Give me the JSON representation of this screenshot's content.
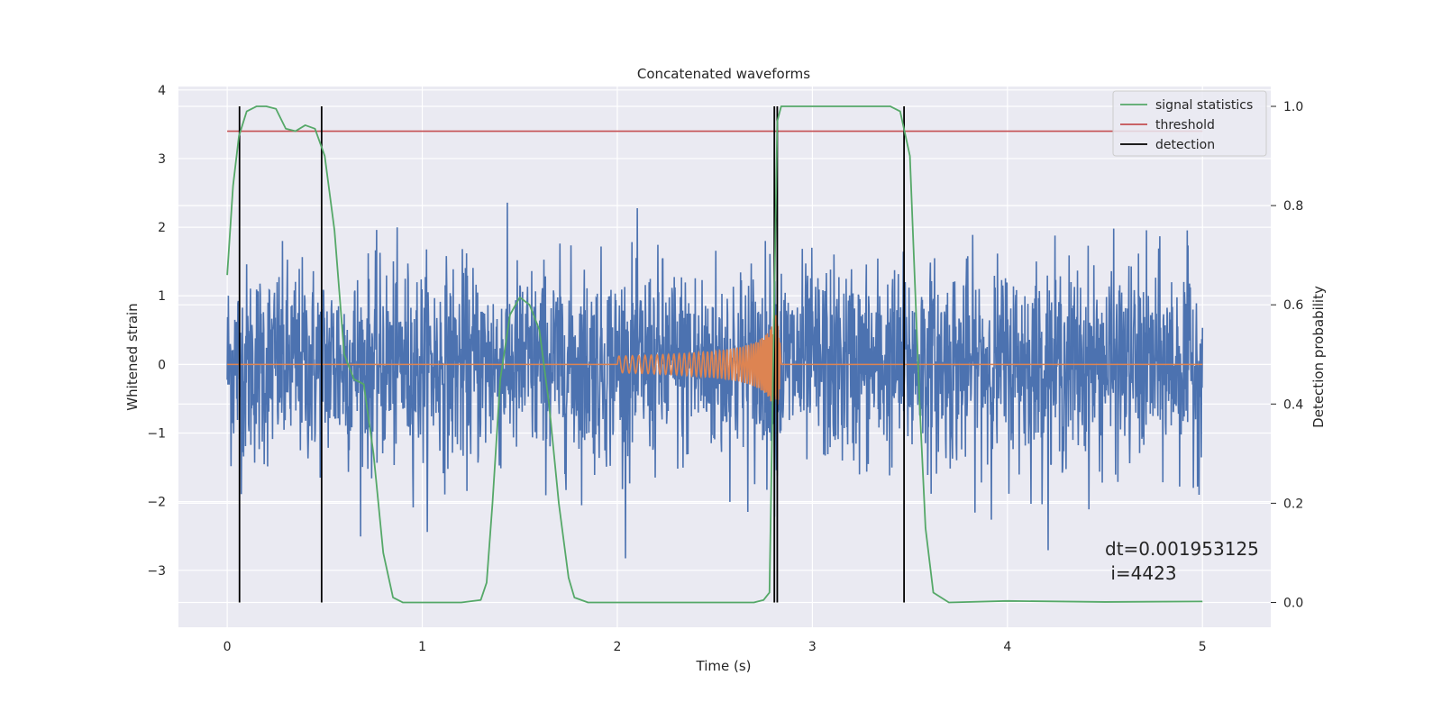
{
  "chart_data": {
    "type": "line",
    "title": "Concatenated waveforms",
    "xlabel": "Time (s)",
    "ylabel": "Whitened strain",
    "ylabel_right": "Detection probability",
    "xlim": [
      -0.25,
      5.35
    ],
    "ylim": [
      -3.83,
      4.05
    ],
    "ylim_right": [
      -0.05,
      1.04
    ],
    "xticks": [
      0,
      1,
      2,
      3,
      4,
      5
    ],
    "yticks": [
      -3,
      -2,
      -1,
      0,
      1,
      2,
      3,
      4
    ],
    "yticks_right": [
      0.0,
      0.2,
      0.4,
      0.6,
      0.8,
      1.0
    ],
    "grid": true,
    "legend_position": "top-right",
    "colors": {
      "strain": "#4c72b0",
      "template": "#dd8452",
      "statistics": "#55a868",
      "threshold": "#c44e52",
      "detection": "#000000",
      "background": "#eaeaf2"
    },
    "series": [
      {
        "name": "signal statistics",
        "axis": "right",
        "x": [
          0.0,
          0.03,
          0.06,
          0.1,
          0.15,
          0.2,
          0.25,
          0.3,
          0.35,
          0.4,
          0.45,
          0.5,
          0.55,
          0.6,
          0.65,
          0.7,
          0.75,
          0.8,
          0.85,
          0.9,
          1.0,
          1.2,
          1.3,
          1.33,
          1.36,
          1.4,
          1.45,
          1.5,
          1.55,
          1.6,
          1.65,
          1.7,
          1.75,
          1.78,
          1.85,
          2.0,
          2.5,
          2.7,
          2.75,
          2.78,
          2.8,
          2.82,
          2.84,
          3.0,
          3.2,
          3.4,
          3.45,
          3.5,
          3.52,
          3.55,
          3.58,
          3.62,
          3.7,
          4.0,
          4.5,
          5.0
        ],
        "values": [
          0.66,
          0.84,
          0.94,
          0.99,
          1.0,
          1.0,
          0.995,
          0.955,
          0.95,
          0.962,
          0.955,
          0.9,
          0.75,
          0.5,
          0.45,
          0.44,
          0.3,
          0.1,
          0.01,
          0.0,
          0.0,
          0.0,
          0.005,
          0.04,
          0.2,
          0.45,
          0.58,
          0.615,
          0.6,
          0.55,
          0.4,
          0.2,
          0.05,
          0.01,
          0.0,
          0.0,
          0.0,
          0.0,
          0.005,
          0.02,
          0.5,
          0.97,
          1.0,
          1.0,
          1.0,
          1.0,
          0.99,
          0.9,
          0.7,
          0.4,
          0.15,
          0.02,
          0.0,
          0.003,
          0.001,
          0.002
        ]
      },
      {
        "name": "threshold",
        "axis": "right",
        "x": [
          0.0,
          5.0
        ],
        "values": [
          0.95,
          0.95
        ]
      },
      {
        "name": "detection",
        "axis": "right",
        "x": [
          0.063,
          0.484,
          2.805,
          2.82,
          3.47
        ],
        "ymin": 0.0,
        "ymax": 1.0
      }
    ],
    "annotation": {
      "line1": "dt=0.001953125",
      "line2": " i=4423"
    }
  }
}
